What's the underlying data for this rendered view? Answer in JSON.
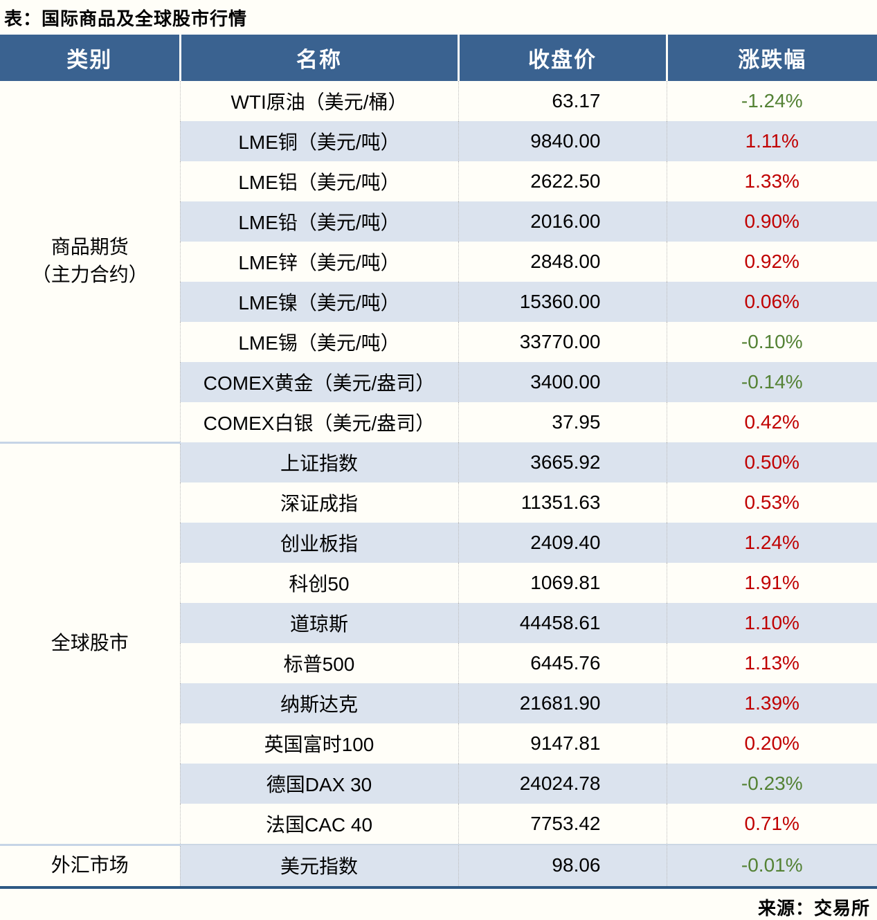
{
  "title": "表：国际商品及全球股市行情",
  "source": "来源：交易所",
  "colors": {
    "header_bg": "#3a6290",
    "stripe_row": "#dbe3ee",
    "plain_row": "#fffef8",
    "positive_change": "#c00000",
    "negative_change": "#548235",
    "bottom_border": "#2e5984"
  },
  "table": {
    "headers": [
      "类别",
      "名称",
      "收盘价",
      "涨跌幅"
    ],
    "sections": [
      {
        "category": "商品期货（主力合约）",
        "category_lines": [
          "商品期货",
          "（主力合约）"
        ],
        "rows": [
          {
            "name": "WTI原油（美元/桶）",
            "close": "63.17",
            "change": "-1.24%"
          },
          {
            "name": "LME铜（美元/吨）",
            "close": "9840.00",
            "change": "1.11%"
          },
          {
            "name": "LME铝（美元/吨）",
            "close": "2622.50",
            "change": "1.33%"
          },
          {
            "name": "LME铅（美元/吨）",
            "close": "2016.00",
            "change": "0.90%"
          },
          {
            "name": "LME锌（美元/吨）",
            "close": "2848.00",
            "change": "0.92%"
          },
          {
            "name": "LME镍（美元/吨）",
            "close": "15360.00",
            "change": "0.06%"
          },
          {
            "name": "LME锡（美元/吨）",
            "close": "33770.00",
            "change": "-0.10%"
          },
          {
            "name": "COMEX黄金（美元/盎司）",
            "close": "3400.00",
            "change": "-0.14%"
          },
          {
            "name": "COMEX白银（美元/盎司）",
            "close": "37.95",
            "change": "0.42%"
          }
        ]
      },
      {
        "category": "全球股市",
        "category_lines": [
          "全球股市"
        ],
        "rows": [
          {
            "name": "上证指数",
            "close": "3665.92",
            "change": "0.50%"
          },
          {
            "name": "深证成指",
            "close": "11351.63",
            "change": "0.53%"
          },
          {
            "name": "创业板指",
            "close": "2409.40",
            "change": "1.24%"
          },
          {
            "name": "科创50",
            "close": "1069.81",
            "change": "1.91%"
          },
          {
            "name": "道琼斯",
            "close": "44458.61",
            "change": "1.10%"
          },
          {
            "name": "标普500",
            "close": "6445.76",
            "change": "1.13%"
          },
          {
            "name": "纳斯达克",
            "close": "21681.90",
            "change": "1.39%"
          },
          {
            "name": "英国富时100",
            "close": "9147.81",
            "change": "0.20%"
          },
          {
            "name": "德国DAX 30",
            "close": "24024.78",
            "change": "-0.23%"
          },
          {
            "name": "法国CAC 40",
            "close": "7753.42",
            "change": "0.71%"
          }
        ]
      },
      {
        "category": "外汇市场",
        "category_lines": [
          "外汇市场"
        ],
        "rows": [
          {
            "name": "美元指数",
            "close": "98.06",
            "change": "-0.01%"
          }
        ]
      }
    ]
  }
}
